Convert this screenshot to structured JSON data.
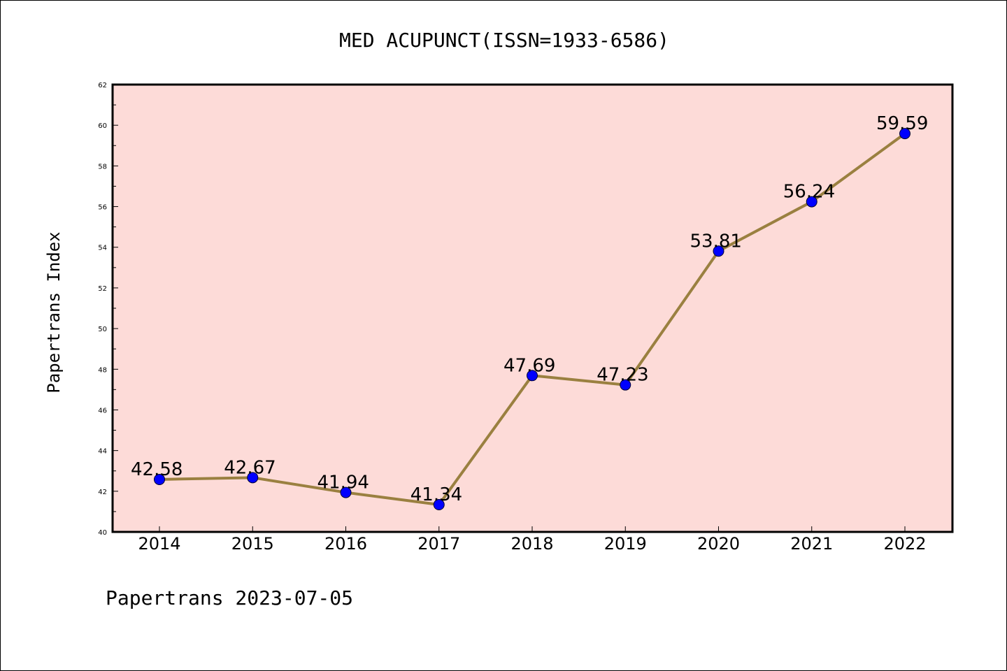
{
  "chart_data": {
    "type": "line",
    "title": "MED ACUPUNCT(ISSN=1933-6586)",
    "xlabel": "",
    "ylabel": "Papertrans Index",
    "categories": [
      "2014",
      "2015",
      "2016",
      "2017",
      "2018",
      "2019",
      "2020",
      "2021",
      "2022"
    ],
    "values": [
      42.58,
      42.67,
      41.94,
      41.34,
      47.69,
      47.23,
      53.81,
      56.24,
      59.59
    ],
    "data_labels": [
      "42.58",
      "42.67",
      "41.94",
      "41.34",
      "47.69",
      "47.23",
      "53.81",
      "56.24",
      "59.59"
    ],
    "ylim": [
      40,
      62
    ],
    "yticks": [
      "40",
      "42",
      "44",
      "46",
      "48",
      "50",
      "52",
      "54",
      "56",
      "58",
      "60",
      "62"
    ],
    "grid": false,
    "legend": "none",
    "colors": {
      "plot_background": "#fddbd8",
      "line": "#9a8040",
      "marker": "#0000ff",
      "axis": "#000000"
    }
  },
  "footer": "Papertrans 2023-07-05"
}
